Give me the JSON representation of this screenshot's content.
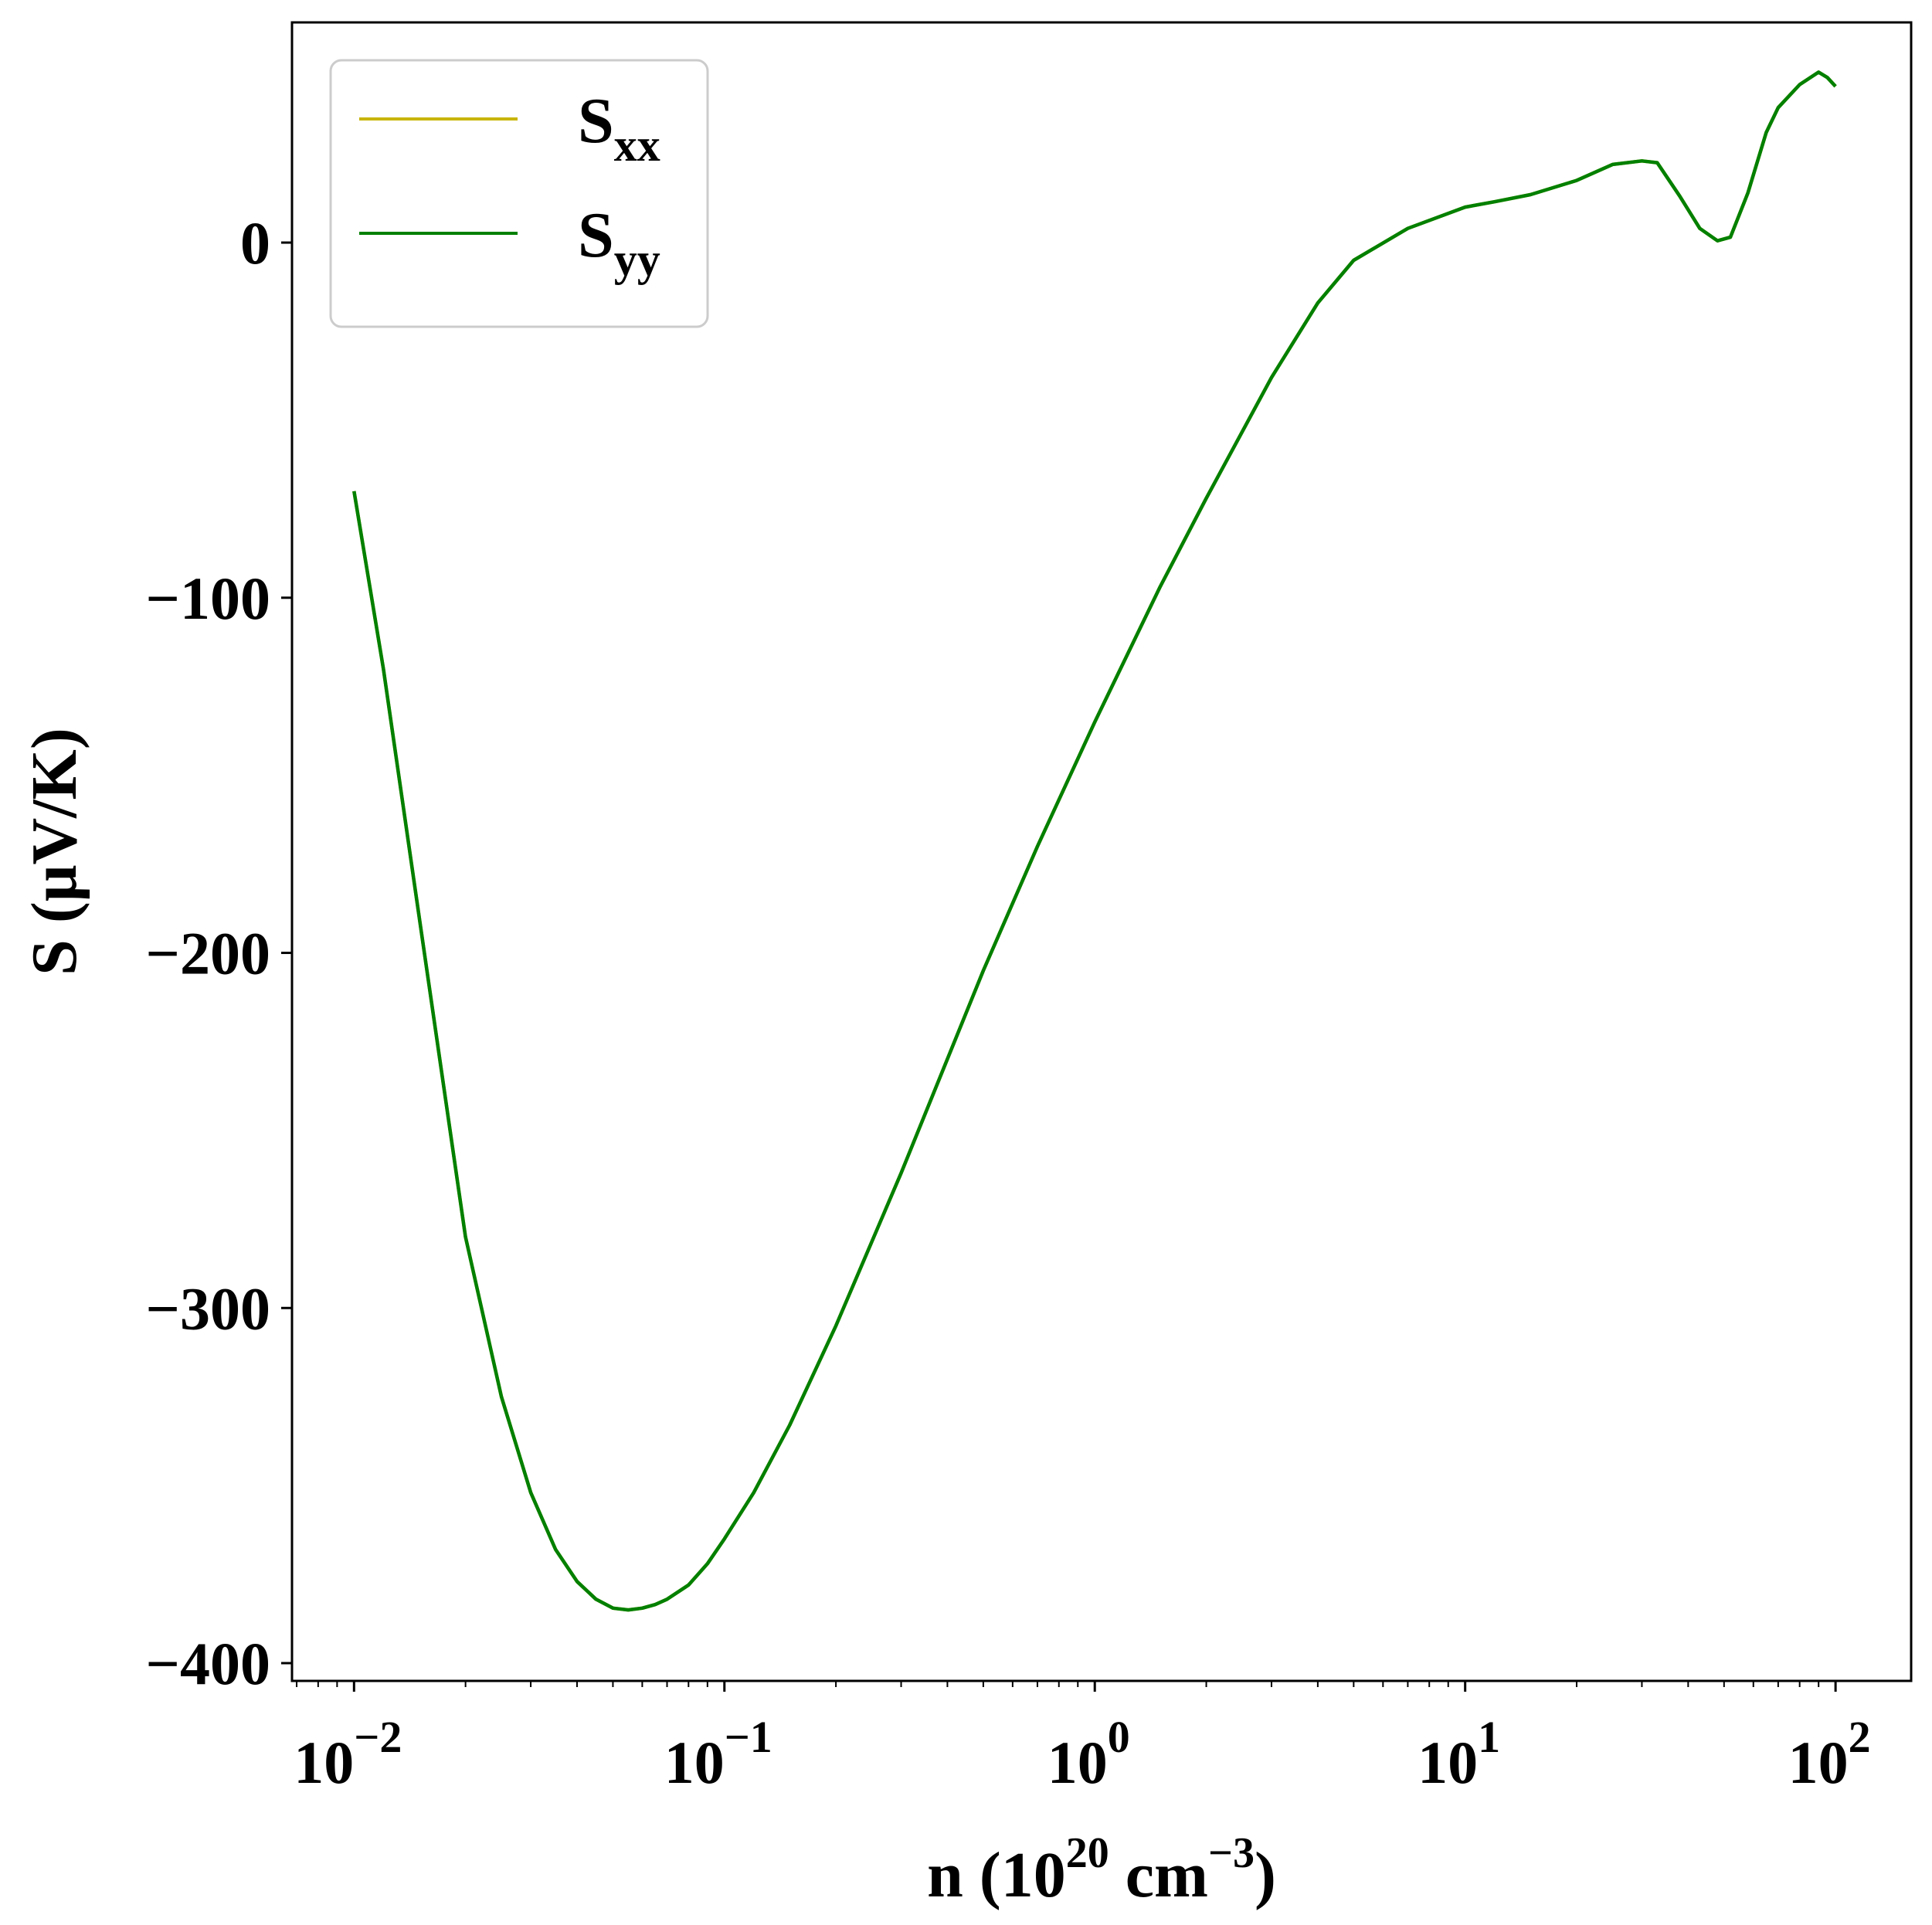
{
  "chart_data": {
    "type": "line",
    "x_scale": "log",
    "xlim": [
      0.0068,
      160
    ],
    "ylim": [
      -405,
      62
    ],
    "x_ticks": [
      {
        "value": 0.01,
        "base": "10",
        "exp": "−2"
      },
      {
        "value": 0.1,
        "base": "10",
        "exp": "−1"
      },
      {
        "value": 1,
        "base": "10",
        "exp": "0"
      },
      {
        "value": 10,
        "base": "10",
        "exp": "1"
      },
      {
        "value": 100,
        "base": "10",
        "exp": "2"
      }
    ],
    "y_ticks": [
      {
        "value": 0,
        "label": "0"
      },
      {
        "value": -100,
        "label": "−100"
      },
      {
        "value": -200,
        "label": "−200"
      },
      {
        "value": -300,
        "label": "−300"
      },
      {
        "value": -400,
        "label": "−400"
      }
    ],
    "xlabel": {
      "pre": "n (10",
      "sup1": "20",
      "mid": " cm",
      "sup2": "−3",
      "post": ")"
    },
    "ylabel": "S (μV/K)",
    "legend_position": "upper left",
    "series": [
      {
        "name": "S",
        "sub": "xx",
        "color": "#c8b400",
        "x": [
          0.01,
          0.012,
          0.015,
          0.02,
          0.025,
          0.03,
          0.035,
          0.04,
          0.045,
          0.05,
          0.055,
          0.06,
          0.065,
          0.07,
          0.08,
          0.09,
          0.1,
          0.12,
          0.15,
          0.2,
          0.3,
          0.5,
          0.7,
          1,
          1.5,
          2,
          3,
          4,
          5,
          7,
          10,
          12,
          15,
          20,
          25,
          30,
          33,
          38,
          43,
          48,
          52,
          58,
          65,
          70,
          80,
          90,
          95,
          100
        ],
        "y": [
          -70,
          -120,
          -190,
          -280,
          -325,
          -352,
          -368,
          -377,
          -382,
          -384.5,
          -385,
          -384.5,
          -383.5,
          -382,
          -378,
          -372,
          -365,
          -352,
          -333,
          -305,
          -262,
          -205,
          -170,
          -135,
          -97,
          -72,
          -38,
          -17,
          -5,
          4,
          10,
          11.5,
          13.5,
          17.5,
          22,
          23,
          22.5,
          13,
          4,
          0.5,
          1.5,
          14,
          31,
          38,
          44.5,
          48,
          46.5,
          44
        ]
      },
      {
        "name": "S",
        "sub": "yy",
        "color": "#008000",
        "x": [
          0.01,
          0.012,
          0.015,
          0.02,
          0.025,
          0.03,
          0.035,
          0.04,
          0.045,
          0.05,
          0.055,
          0.06,
          0.065,
          0.07,
          0.08,
          0.09,
          0.1,
          0.12,
          0.15,
          0.2,
          0.3,
          0.5,
          0.7,
          1,
          1.5,
          2,
          3,
          4,
          5,
          7,
          10,
          12,
          15,
          20,
          25,
          30,
          33,
          38,
          43,
          48,
          52,
          58,
          65,
          70,
          80,
          90,
          95,
          100
        ],
        "y": [
          -70,
          -120,
          -190,
          -280,
          -325,
          -352,
          -368,
          -377,
          -382,
          -384.5,
          -385,
          -384.5,
          -383.5,
          -382,
          -378,
          -372,
          -365,
          -352,
          -333,
          -305,
          -262,
          -205,
          -170,
          -135,
          -97,
          -72,
          -38,
          -17,
          -5,
          4,
          10,
          11.5,
          13.5,
          17.5,
          22,
          23,
          22.5,
          13,
          4,
          0.5,
          1.5,
          14,
          31,
          38,
          44.5,
          48,
          46.5,
          44
        ]
      }
    ]
  }
}
